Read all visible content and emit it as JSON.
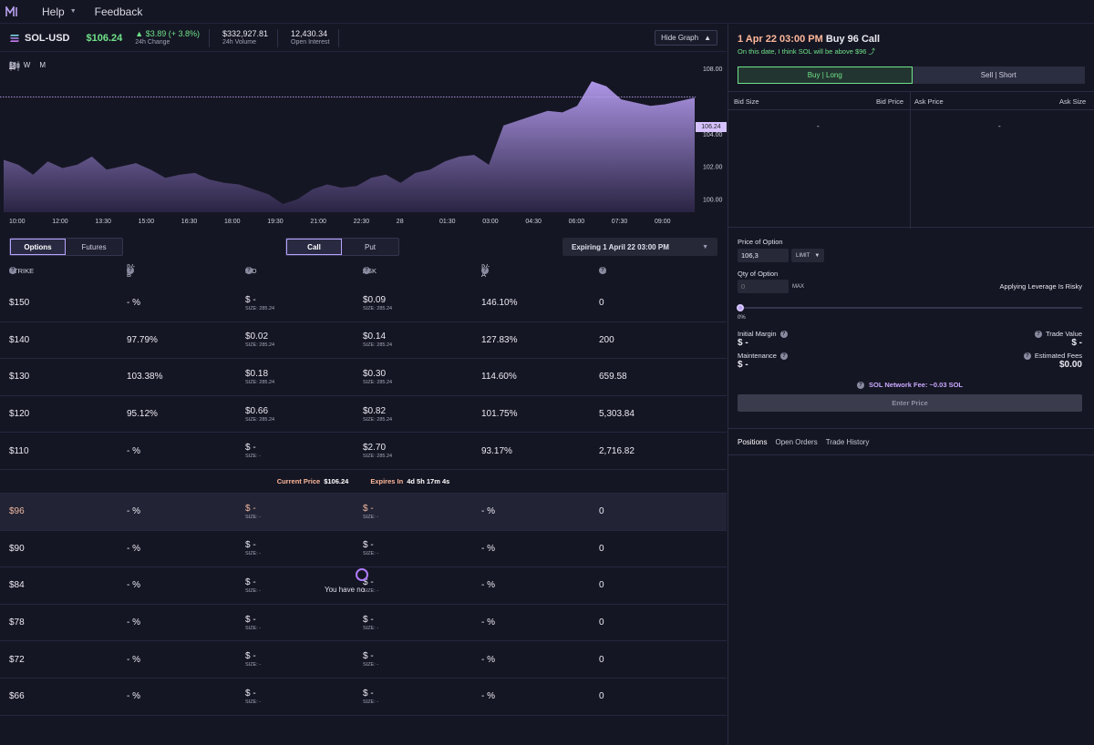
{
  "nav": {
    "help": "Help",
    "feedback": "Feedback"
  },
  "ticker": {
    "symbol": "SOL-USD",
    "price": "$106.24",
    "change_value": "$3.89 (+ 3.8%)",
    "change_label": "24h Change",
    "volume_value": "$332,927.81",
    "volume_label": "24h Volume",
    "oi_value": "12,430.34",
    "oi_label": "Open Interest",
    "hide_graph": "Hide Graph"
  },
  "chart": {
    "timeframes": [
      "D",
      "W",
      "M"
    ],
    "current_tag": "106.24",
    "y_ticks": [
      "108.00",
      "106.00",
      "104.00",
      "102.00",
      "100.00"
    ],
    "x_ticks": [
      "10:00",
      "12:00",
      "13:30",
      "15:00",
      "16:30",
      "18:00",
      "19:30",
      "21:00",
      "22:30",
      "28",
      "01:30",
      "03:00",
      "04:30",
      "06:00",
      "07:30",
      "09:00"
    ],
    "accent": "#b9a2f0"
  },
  "chart_data": {
    "type": "area",
    "x": [
      "10:00",
      "10:30",
      "11:00",
      "11:30",
      "12:00",
      "12:30",
      "13:00",
      "13:30",
      "14:00",
      "14:30",
      "15:00",
      "15:30",
      "16:00",
      "16:30",
      "17:00",
      "17:30",
      "18:00",
      "18:30",
      "19:00",
      "19:30",
      "20:00",
      "20:30",
      "21:00",
      "21:30",
      "22:00",
      "22:30",
      "23:00",
      "23:30",
      "00:00",
      "00:30",
      "01:00",
      "01:30",
      "02:00",
      "02:30",
      "03:00",
      "03:30",
      "04:00",
      "04:30",
      "05:00",
      "05:30",
      "06:00",
      "06:30",
      "07:00",
      "07:30",
      "08:00",
      "08:30",
      "09:00",
      "09:30"
    ],
    "values": [
      102.4,
      102.1,
      101.5,
      102.3,
      101.9,
      102.1,
      102.6,
      101.8,
      102.0,
      102.2,
      101.8,
      101.3,
      101.5,
      101.6,
      101.2,
      101.0,
      100.9,
      100.6,
      100.3,
      99.7,
      100.0,
      100.6,
      100.9,
      100.7,
      100.8,
      101.3,
      101.5,
      101.0,
      101.6,
      101.8,
      102.3,
      102.6,
      102.7,
      102.1,
      104.5,
      104.8,
      105.1,
      105.4,
      105.3,
      105.7,
      107.2,
      106.9,
      106.1,
      105.9,
      105.7,
      105.8,
      106.0,
      106.2
    ],
    "ylim": [
      99.2,
      109.0
    ],
    "current": 106.24
  },
  "controls": {
    "options": "Options",
    "futures": "Futures",
    "call": "Call",
    "put": "Put",
    "expiry": "Expiring 1 April 22 03:00 PM"
  },
  "table": {
    "headers": {
      "strike": "STRIKE",
      "ivb": "IV-B",
      "bid": "BID",
      "ask": "ASK",
      "iva": "IV-A",
      "oi": "OI"
    },
    "rows_above": [
      {
        "strike": "$150",
        "ivb": "- %",
        "bid": "$ -",
        "bid_size": "SIZE: 285.24",
        "ask": "$0.09",
        "ask_size": "SIZE: 285.24",
        "iva": "146.10%",
        "oi": "0"
      },
      {
        "strike": "$140",
        "ivb": "97.79%",
        "bid": "$0.02",
        "bid_size": "SIZE: 285.24",
        "ask": "$0.14",
        "ask_size": "SIZE: 285.24",
        "iva": "127.83%",
        "oi": "200"
      },
      {
        "strike": "$130",
        "ivb": "103.38%",
        "bid": "$0.18",
        "bid_size": "SIZE: 285.24",
        "ask": "$0.30",
        "ask_size": "SIZE: 285.24",
        "iva": "114.60%",
        "oi": "659.58"
      },
      {
        "strike": "$120",
        "ivb": "95.12%",
        "bid": "$0.66",
        "bid_size": "SIZE: 285.24",
        "ask": "$0.82",
        "ask_size": "SIZE: 285.24",
        "iva": "101.75%",
        "oi": "5,303.84"
      },
      {
        "strike": "$110",
        "ivb": "- %",
        "bid": "$ -",
        "bid_size": "SIZE: -",
        "ask": "$2.70",
        "ask_size": "SIZE: 285.24",
        "iva": "93.17%",
        "oi": "2,716.82"
      }
    ],
    "mid": {
      "current_label": "Current Price",
      "current_value": "$106.24",
      "expires_label": "Expires In",
      "expires_value": "4d 5h 17m 4s"
    },
    "rows_below": [
      {
        "strike": "$96",
        "ivb": "- %",
        "bid": "$ -",
        "bid_size": "SIZE: -",
        "ask": "$ -",
        "ask_size": "SIZE: -",
        "iva": "- %",
        "oi": "0"
      },
      {
        "strike": "$90",
        "ivb": "- %",
        "bid": "$ -",
        "bid_size": "SIZE: -",
        "ask": "$ -",
        "ask_size": "SIZE: -",
        "iva": "- %",
        "oi": "0"
      },
      {
        "strike": "$84",
        "ivb": "- %",
        "bid": "$ -",
        "bid_size": "SIZE: -",
        "ask": "$ -",
        "ask_size": "SIZE: -",
        "iva": "- %",
        "oi": "0"
      },
      {
        "strike": "$78",
        "ivb": "- %",
        "bid": "$ -",
        "bid_size": "SIZE: -",
        "ask": "$ -",
        "ask_size": "SIZE: -",
        "iva": "- %",
        "oi": "0"
      },
      {
        "strike": "$72",
        "ivb": "- %",
        "bid": "$ -",
        "bid_size": "SIZE: -",
        "ask": "$ -",
        "ask_size": "SIZE: -",
        "iva": "- %",
        "oi": "0"
      },
      {
        "strike": "$66",
        "ivb": "- %",
        "bid": "$ -",
        "bid_size": "SIZE: -",
        "ask": "$ -",
        "ask_size": "SIZE: -",
        "iva": "- %",
        "oi": "0"
      }
    ]
  },
  "order": {
    "date": "1 Apr 22 03:00 PM",
    "action": "Buy 96 Call",
    "subtitle": "On this date, I think SOL will be above $96 ⤴",
    "buy": "Buy | Long",
    "sell": "Sell | Short",
    "book": {
      "bid_size": "Bid Size",
      "bid_price": "Bid Price",
      "ask_price": "Ask Price",
      "ask_size": "Ask Size",
      "bid_dash": "-",
      "ask_dash": "-"
    },
    "price_label": "Price of Option",
    "price_value": "106,3",
    "order_type": "LIMIT",
    "qty_label": "Qty of Option",
    "qty_placeholder": "0",
    "max": "MAX",
    "leverage": "Applying Leverage Is Risky",
    "slider_pct": "0%",
    "initial_margin_label": "Initial Margin",
    "initial_margin_value": "$ -",
    "maintenance_label": "Maintenance",
    "maintenance_value": "$ -",
    "trade_value_label": "Trade Value",
    "trade_value_value": "$ -",
    "fees_label": "Estimated Fees",
    "fees_value": "$0.00",
    "network_fee": "SOL Network Fee: ~0.03 SOL",
    "enter": "Enter Price"
  },
  "positions": {
    "tabs": [
      "Positions",
      "Open Orders",
      "Trade History"
    ],
    "empty": "You have no"
  }
}
